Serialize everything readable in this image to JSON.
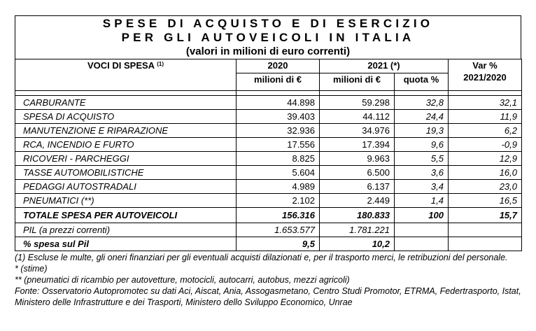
{
  "title": {
    "line1": "SPESE DI ACQUISTO E DI ESERCIZIO",
    "line2": "PER GLI AUTOVEICOLI IN ITALIA",
    "line3": "(valori in milioni di euro correnti)"
  },
  "headers": {
    "voci": "VOCI DI SPESA",
    "voci_note": "(1)",
    "y2020": "2020",
    "y2021": "2021 (*)",
    "var": "Var %",
    "var_period": "2021/2020",
    "milioni_2020": "milioni di €",
    "milioni_2021": "milioni di €",
    "quota": "quota %"
  },
  "rows": [
    {
      "label": "CARBURANTE",
      "v2020": "44.898",
      "v2021": "59.298",
      "quota": "32,8",
      "var": "32,1"
    },
    {
      "label": "SPESA DI ACQUISTO",
      "v2020": "39.403",
      "v2021": "44.112",
      "quota": "24,4",
      "var": "11,9"
    },
    {
      "label": "MANUTENZIONE E RIPARAZIONE",
      "v2020": "32.936",
      "v2021": "34.976",
      "quota": "19,3",
      "var": "6,2"
    },
    {
      "label": "RCA, INCENDIO E FURTO",
      "v2020": "17.556",
      "v2021": "17.394",
      "quota": "9,6",
      "var": "-0,9"
    },
    {
      "label": "RICOVERI - PARCHEGGI",
      "v2020": "8.825",
      "v2021": "9.963",
      "quota": "5,5",
      "var": "12,9"
    },
    {
      "label": "TASSE AUTOMOBILISTICHE",
      "v2020": "5.604",
      "v2021": "6.500",
      "quota": "3,6",
      "var": "16,0"
    },
    {
      "label": "PEDAGGI AUTOSTRADALI",
      "v2020": "4.989",
      "v2021": "6.137",
      "quota": "3,4",
      "var": "23,0"
    },
    {
      "label": "PNEUMATICI (**)",
      "v2020": "2.102",
      "v2021": "2.449",
      "quota": "1,4",
      "var": "16,5"
    }
  ],
  "total": {
    "label": "TOTALE SPESA PER AUTOVEICOLI",
    "v2020": "156.316",
    "v2021": "180.833",
    "quota": "100",
    "var": "15,7"
  },
  "pil": {
    "label": "PIL (a prezzi correnti)",
    "v2020": "1.653.577",
    "v2021": "1.781.221"
  },
  "pct": {
    "label": "% spesa sul Pil",
    "v2020": "9,5",
    "v2021": "10,2"
  },
  "notes": {
    "n1": "(1) Escluse le multe, gli oneri finanziari per gli eventuali acquisti dilazionati e, per il trasporto merci, le retribuzioni del personale.",
    "n2": "* (stime)",
    "n3": "** (pneumatici di ricambio per autovetture, motocicli, autocarri, autobus, mezzi agricoli)",
    "n4": "Fonte: Osservatorio Autopromotec su dati Aci, Aiscat, Ania, Assogasmetano, Centro Studi Promotor, ETRMA, Federtrasporto, Istat, Ministero delle Infrastrutture e dei Trasporti, Ministero dello Sviluppo Economico, Unrae"
  }
}
